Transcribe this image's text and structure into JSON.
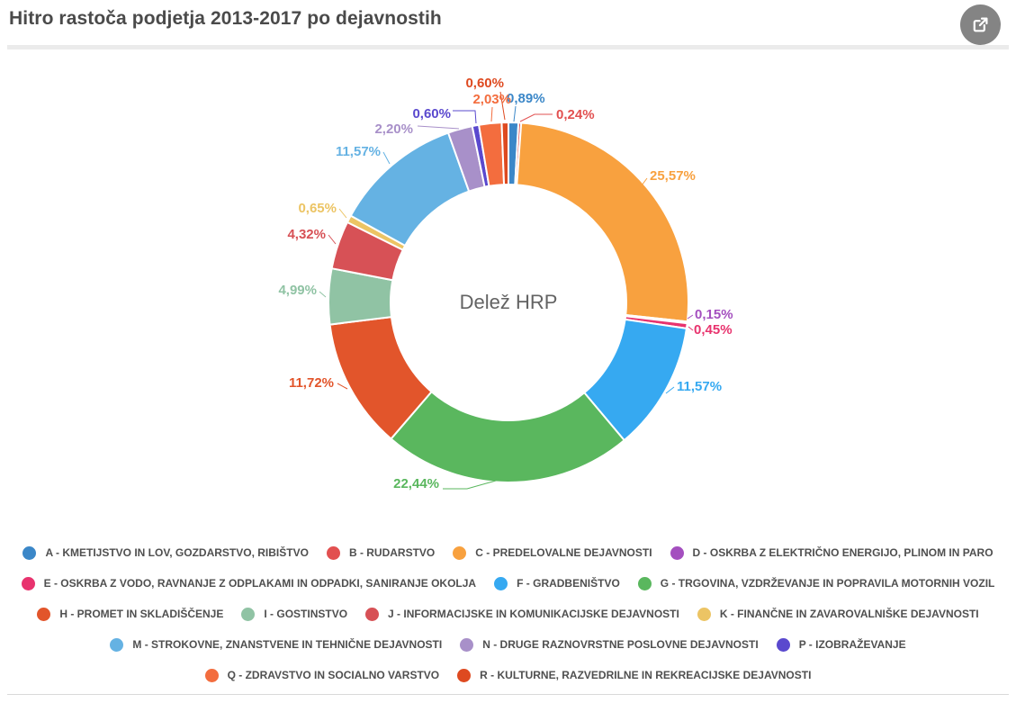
{
  "header": {
    "title": "Hitro rastoča podjetja 2013-2017 po dejavnostih"
  },
  "chart_data": {
    "type": "pie",
    "subtype": "donut",
    "title": "Hitro rastoča podjetja 2013-2017 po dejavnostih",
    "center_label": "Delež HRP",
    "unit": "%",
    "legend_position": "bottom",
    "series": [
      {
        "code": "A",
        "label": "A - KMETIJSTVO IN LOV, GOZDARSTVO, RIBIŠTVO",
        "value": 0.89,
        "display": "0,89%",
        "color": "#3b87c8"
      },
      {
        "code": "B",
        "label": "B - RUDARSTVO",
        "value": 0.24,
        "display": "0,24%",
        "color": "#e25050"
      },
      {
        "code": "C",
        "label": "C - PREDELOVALNE DEJAVNOSTI",
        "value": 25.57,
        "display": "25,57%",
        "color": "#f8a13f"
      },
      {
        "code": "D",
        "label": "D - OSKRBA Z ELEKTRIČNO ENERGIJO, PLINOM IN PARO",
        "value": 0.15,
        "display": "0,15%",
        "color": "#a44fbf"
      },
      {
        "code": "E",
        "label": "E - OSKRBA Z VODO, RAVNANJE Z ODPLAKAMI IN ODPADKI, SANIRANJE OKOLJA",
        "value": 0.45,
        "display": "0,45%",
        "color": "#e8336e"
      },
      {
        "code": "F",
        "label": "F - GRADBENIŠTVO",
        "value": 11.57,
        "display": "11,57%",
        "color": "#36a9f1"
      },
      {
        "code": "G",
        "label": "G - TRGOVINA, VZDRŽEVANJE IN POPRAVILA MOTORNIH VOZIL",
        "value": 22.44,
        "display": "22,44%",
        "color": "#5ab75e"
      },
      {
        "code": "H",
        "label": "H - PROMET IN SKLADIŠČENJE",
        "value": 11.72,
        "display": "11,72%",
        "color": "#e2552b"
      },
      {
        "code": "I",
        "label": "I - GOSTINSTVO",
        "value": 4.99,
        "display": "4,99%",
        "color": "#90c3a4"
      },
      {
        "code": "J",
        "label": "J - INFORMACIJSKE IN KOMUNIKACIJSKE DEJAVNOSTI",
        "value": 4.32,
        "display": "4,32%",
        "color": "#d75156"
      },
      {
        "code": "K",
        "label": "K - FINANČNE IN ZAVAROVALNIŠKE DEJAVNOSTI",
        "value": 0.65,
        "display": "0,65%",
        "color": "#ecc464"
      },
      {
        "code": "M",
        "label": "M - STROKOVNE, ZNANSTVENE IN TEHNIČNE DEJAVNOSTI",
        "value": 11.57,
        "display": "11,57%",
        "color": "#65b2e3"
      },
      {
        "code": "N",
        "label": "N - DRUGE RAZNOVRSTNE POSLOVNE DEJAVNOSTI",
        "value": 2.2,
        "display": "2,20%",
        "color": "#a890c9"
      },
      {
        "code": "P",
        "label": "P - IZOBRAŽEVANJE",
        "value": 0.6,
        "display": "0,60%",
        "color": "#5a49ce"
      },
      {
        "code": "Q",
        "label": "Q - ZDRAVSTVO IN SOCIALNO VARSTVO",
        "value": 2.03,
        "display": "2,03%",
        "color": "#f36d3e"
      },
      {
        "code": "R",
        "label": "R - KULTURNE, RAZVEDRILNE IN REKREACIJSKE DEJAVNOSTI",
        "value": 0.6,
        "display": "0,60%",
        "color": "#de4a20"
      }
    ]
  }
}
